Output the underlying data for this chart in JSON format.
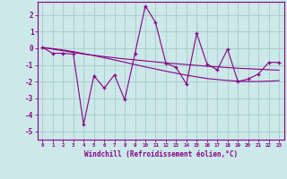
{
  "title": "",
  "xlabel": "Windchill (Refroidissement éolien,°C)",
  "background_color": "#cce8e8",
  "grid_color": "#aacece",
  "line_color": "#880088",
  "xlim": [
    -0.5,
    23.5
  ],
  "ylim": [
    -5.5,
    2.8
  ],
  "yticks": [
    -5,
    -4,
    -3,
    -2,
    -1,
    0,
    1,
    2
  ],
  "xticks": [
    0,
    1,
    2,
    3,
    4,
    5,
    6,
    7,
    8,
    9,
    10,
    11,
    12,
    13,
    14,
    15,
    16,
    17,
    18,
    19,
    20,
    21,
    22,
    23
  ],
  "main_data": [
    0.05,
    -0.3,
    -0.3,
    -0.35,
    -4.6,
    -1.65,
    -2.4,
    -1.6,
    -3.1,
    -0.3,
    2.55,
    1.55,
    -0.9,
    -1.15,
    -2.15,
    0.9,
    -0.95,
    -1.3,
    -0.05,
    -2.0,
    -1.85,
    -1.55,
    -0.85,
    -0.85
  ],
  "trend1_data": [
    0.05,
    -0.05,
    -0.15,
    -0.25,
    -0.35,
    -0.42,
    -0.5,
    -0.57,
    -0.64,
    -0.7,
    -0.76,
    -0.82,
    -0.88,
    -0.93,
    -0.98,
    -1.03,
    -1.08,
    -1.12,
    -1.16,
    -1.2,
    -1.23,
    -1.26,
    -1.29,
    -1.32
  ],
  "trend2_data": [
    0.05,
    -0.02,
    -0.1,
    -0.2,
    -0.32,
    -0.44,
    -0.57,
    -0.7,
    -0.84,
    -0.98,
    -1.12,
    -1.25,
    -1.38,
    -1.5,
    -1.62,
    -1.72,
    -1.82,
    -1.88,
    -1.94,
    -1.98,
    -2.0,
    -2.0,
    -1.98,
    -1.95
  ]
}
